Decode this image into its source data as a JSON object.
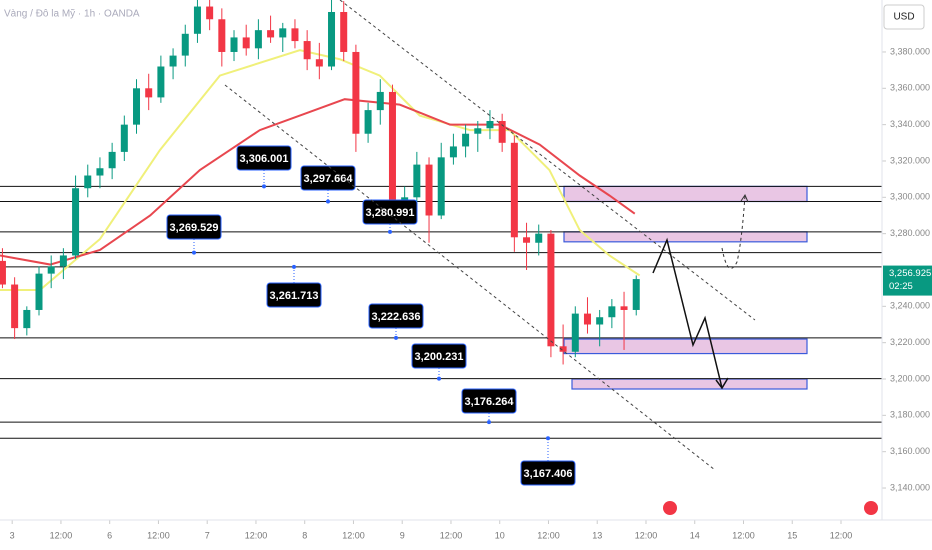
{
  "chart_data": {
    "type": "candlestick",
    "title": "Vàng / Đô la Mỹ · 1h · OANDA",
    "currency": "USD",
    "ylim": [
      3122.4,
      3408.6
    ],
    "yticks": [
      {
        "value": 3140,
        "label": "3,140.000"
      },
      {
        "value": 3160,
        "label": "3,160.000"
      },
      {
        "value": 3180,
        "label": "3,180.000"
      },
      {
        "value": 3200,
        "label": "3,200.000"
      },
      {
        "value": 3220,
        "label": "3,220.000"
      },
      {
        "value": 3240,
        "label": "3,240.000"
      },
      {
        "value": 3280,
        "label": "3,280.000"
      },
      {
        "value": 3300,
        "label": "3,300.000"
      },
      {
        "value": 3320,
        "label": "3,320.000"
      },
      {
        "value": 3340,
        "label": "3,340.000"
      },
      {
        "value": 3360,
        "label": "3,360.000"
      },
      {
        "value": 3380,
        "label": "3,380.000"
      }
    ],
    "xlim": [
      -0.25,
      17.8
    ],
    "xticks": [
      {
        "value": 0,
        "label": "3"
      },
      {
        "value": 1,
        "label": "12:00"
      },
      {
        "value": 2,
        "label": "6"
      },
      {
        "value": 3,
        "label": "12:00"
      },
      {
        "value": 4,
        "label": "7"
      },
      {
        "value": 5,
        "label": "12:00"
      },
      {
        "value": 6,
        "label": "8"
      },
      {
        "value": 7,
        "label": "12:00"
      },
      {
        "value": 8,
        "label": "9"
      },
      {
        "value": 9,
        "label": "12:00"
      },
      {
        "value": 10,
        "label": "10"
      },
      {
        "value": 11,
        "label": "12:00"
      },
      {
        "value": 12,
        "label": "13"
      },
      {
        "value": 13,
        "label": "12:00"
      },
      {
        "value": 14,
        "label": "14"
      },
      {
        "value": 15,
        "label": "12:00"
      },
      {
        "value": 16,
        "label": "15"
      },
      {
        "value": 17,
        "label": "12:00"
      }
    ],
    "up_color": "#089981",
    "down_color": "#f23645",
    "candles": {
      "x": [
        -0.2,
        0.05,
        0.3,
        0.55,
        0.8,
        1.05,
        1.3,
        1.55,
        1.8,
        2.05,
        2.3,
        2.55,
        2.8,
        3.05,
        3.3,
        3.55,
        3.8,
        4.05,
        4.3,
        4.55,
        4.8,
        5.05,
        5.3,
        5.55,
        5.8,
        6.05,
        6.3,
        6.55,
        6.8,
        7.05,
        7.3,
        7.55,
        7.8,
        8.05,
        8.3,
        8.55,
        8.8,
        9.05,
        9.3,
        9.55,
        9.8,
        10.05,
        10.3,
        10.55,
        10.8,
        11.05,
        11.3,
        11.55,
        11.8,
        12.05,
        12.3,
        12.55,
        12.8
      ],
      "open": [
        3265,
        3252,
        3228,
        3238,
        3258,
        3262,
        3268,
        3305,
        3312,
        3316,
        3325,
        3340,
        3360,
        3355,
        3372,
        3378,
        3390,
        3405,
        3398,
        3380,
        3388,
        3382,
        3392,
        3388,
        3393,
        3386,
        3376,
        3372,
        3402,
        3380,
        3335,
        3348,
        3358,
        3295,
        3300,
        3318,
        3290,
        3322,
        3328,
        3335,
        3338,
        3342,
        3330,
        3278,
        3275,
        3280,
        3218,
        3215,
        3236,
        3230,
        3234,
        3240,
        3238
      ],
      "high": [
        3272,
        3256,
        3240,
        3262,
        3268,
        3272,
        3312,
        3318,
        3322,
        3330,
        3345,
        3365,
        3368,
        3378,
        3382,
        3395,
        3410,
        3410,
        3404,
        3392,
        3395,
        3398,
        3400,
        3396,
        3398,
        3392,
        3385,
        3410,
        3408,
        3384,
        3352,
        3365,
        3362,
        3306,
        3325,
        3322,
        3330,
        3335,
        3340,
        3342,
        3348,
        3346,
        3334,
        3286,
        3285,
        3282,
        3230,
        3240,
        3245,
        3238,
        3244,
        3248,
        3257
      ],
      "low": [
        3250,
        3222,
        3224,
        3235,
        3250,
        3255,
        3266,
        3300,
        3305,
        3310,
        3320,
        3335,
        3348,
        3352,
        3365,
        3372,
        3385,
        3392,
        3372,
        3375,
        3378,
        3376,
        3385,
        3380,
        3382,
        3370,
        3365,
        3370,
        3375,
        3325,
        3330,
        3340,
        3290,
        3288,
        3296,
        3275,
        3288,
        3318,
        3322,
        3325,
        3332,
        3325,
        3270,
        3260,
        3268,
        3212,
        3208,
        3212,
        3225,
        3218,
        3228,
        3216,
        3235
      ],
      "close": [
        3252,
        3228,
        3238,
        3258,
        3262,
        3268,
        3305,
        3312,
        3316,
        3325,
        3340,
        3360,
        3355,
        3372,
        3378,
        3390,
        3405,
        3398,
        3380,
        3388,
        3382,
        3392,
        3388,
        3393,
        3386,
        3376,
        3372,
        3402,
        3380,
        3335,
        3348,
        3358,
        3295,
        3300,
        3318,
        3290,
        3322,
        3328,
        3335,
        3338,
        3342,
        3330,
        3278,
        3275,
        3280,
        3218,
        3215,
        3236,
        3230,
        3234,
        3240,
        3238,
        3255
      ]
    },
    "series": [
      {
        "color": "#f0f07a",
        "x": [
          -0.25,
          0.57,
          1.8,
          3.03,
          4.26,
          5.9,
          6.72,
          7.54,
          8.36,
          9.39,
          10.2,
          11.02,
          11.64,
          12.25,
          12.87
        ],
        "values": [
          3249,
          3249,
          3277,
          3326,
          3367,
          3381,
          3376,
          3367,
          3345,
          3337,
          3337,
          3315,
          3282,
          3268,
          3257
        ]
      },
      {
        "color": "#e8474f",
        "x": [
          -0.25,
          0.78,
          1.8,
          2.83,
          3.85,
          5.08,
          5.9,
          6.82,
          7.95,
          8.98,
          10.0,
          10.82,
          11.64,
          12.25,
          12.77
        ],
        "values": [
          3268,
          3263,
          3271,
          3290,
          3315,
          3337,
          3345,
          3354,
          3351,
          3340,
          3340,
          3329,
          3312,
          3301,
          3291
        ]
      }
    ],
    "levels": [
      {
        "value": 3306.001,
        "label": "3,306.001"
      },
      {
        "value": 3297.664,
        "label": "3,297.664"
      },
      {
        "value": 3280.991,
        "label": "3,280.991"
      },
      {
        "value": 3269.529,
        "label": "3,269.529"
      },
      {
        "value": 3261.713,
        "label": "3,261.713"
      },
      {
        "value": 3222.636,
        "label": "3,222.636"
      },
      {
        "value": 3200.231,
        "label": "3,200.231"
      },
      {
        "value": 3176.264,
        "label": "3,176.264"
      },
      {
        "value": 3167.406,
        "label": "3,167.406"
      }
    ],
    "zones": [
      [
        3297.7,
        3306
      ],
      [
        3275.5,
        3281
      ],
      [
        3214,
        3222
      ],
      [
        3194.5,
        3200
      ]
    ],
    "zone_color": "#e9c6e4",
    "last_price": {
      "value": 3256.925,
      "label": "3,256.925",
      "countdown": "02:25",
      "color": "#089981"
    }
  }
}
